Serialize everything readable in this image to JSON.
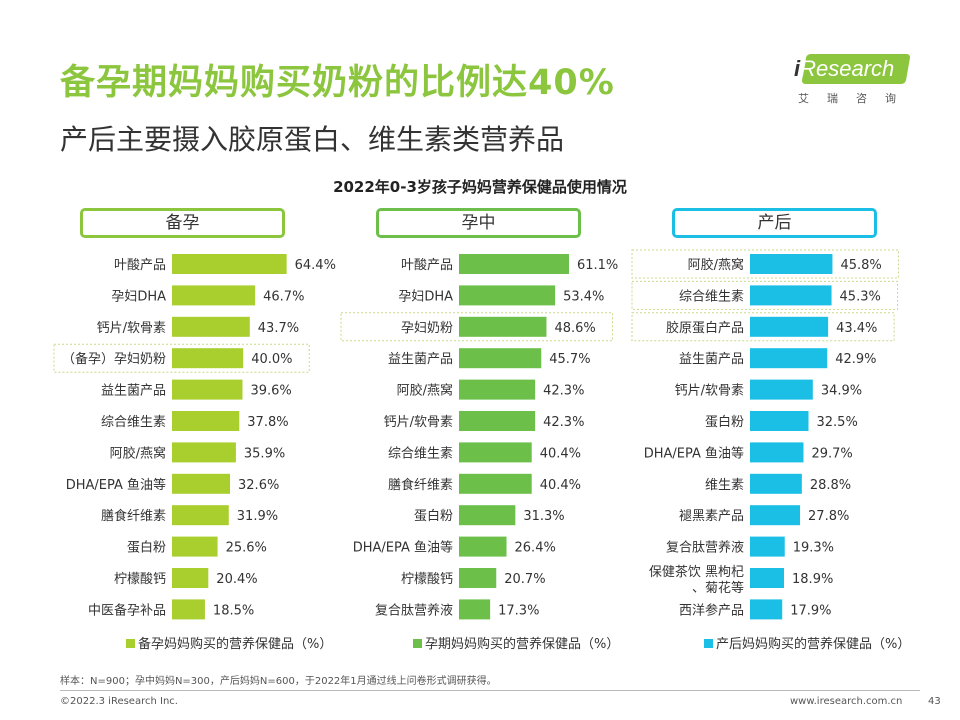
{
  "header": {
    "title": "备孕期妈妈购买奶粉的比例达40%",
    "subtitle": "产后主要摄入胶原蛋白、维生素类营养品"
  },
  "logo": {
    "i": "i",
    "rest": "Research",
    "sub": "艾瑞咨询"
  },
  "colors": {
    "accent": "#8cc63f",
    "bar_prep": "#a9cf2f",
    "bar_preg": "#6cc04a",
    "bar_post": "#1bbfe6"
  },
  "chart_data": [
    {
      "type": "bar",
      "orientation": "horizontal",
      "title": "2022年0-3岁孩子妈妈营养保健品使用情况",
      "header": "备孕",
      "color": "#a9cf2f",
      "legend": "备孕妈妈购买的营养保健品（%）",
      "highlight": [
        "（备孕）孕妇奶粉"
      ],
      "categories": [
        "叶酸产品",
        "孕妇DHA",
        "钙片/软骨素",
        "（备孕）孕妇奶粉",
        "益生菌产品",
        "综合维生素",
        "阿胶/燕窝",
        "DHA/EPA 鱼油等",
        "膳食纤维素",
        "蛋白粉",
        "柠檬酸钙",
        "中医备孕补品"
      ],
      "values": [
        64.4,
        46.7,
        43.7,
        40.0,
        39.6,
        37.8,
        35.9,
        32.6,
        31.9,
        25.6,
        20.4,
        18.5
      ],
      "labels": [
        "64.4%",
        "46.7%",
        "43.7%",
        "40.0%",
        "39.6%",
        "37.8%",
        "35.9%",
        "32.6%",
        "31.9%",
        "25.6%",
        "20.4%",
        "18.5%"
      ]
    },
    {
      "type": "bar",
      "orientation": "horizontal",
      "header": "孕中",
      "color": "#6cc04a",
      "legend": "孕期妈妈购买的营养保健品（%）",
      "highlight": [
        "孕妇奶粉"
      ],
      "categories": [
        "叶酸产品",
        "孕妇DHA",
        "孕妇奶粉",
        "益生菌产品",
        "阿胶/燕窝",
        "钙片/软骨素",
        "综合维生素",
        "膳食纤维素",
        "蛋白粉",
        "DHA/EPA 鱼油等",
        "柠檬酸钙",
        "复合肽营养液"
      ],
      "values": [
        61.1,
        53.4,
        48.6,
        45.7,
        42.3,
        42.3,
        40.4,
        40.4,
        31.3,
        26.4,
        20.7,
        17.3
      ],
      "labels": [
        "61.1%",
        "53.4%",
        "48.6%",
        "45.7%",
        "42.3%",
        "42.3%",
        "40.4%",
        "40.4%",
        "31.3%",
        "26.4%",
        "20.7%",
        "17.3%"
      ]
    },
    {
      "type": "bar",
      "orientation": "horizontal",
      "header": "产后",
      "color": "#1bbfe6",
      "legend": "产后妈妈购买的营养保健品（%）",
      "highlight": [
        "阿胶/燕窝",
        "综合维生素",
        "胶原蛋白产品"
      ],
      "categories": [
        "阿胶/燕窝",
        "综合维生素",
        "胶原蛋白产品",
        "益生菌产品",
        "钙片/软骨素",
        "蛋白粉",
        "DHA/EPA 鱼油等",
        "维生素",
        "褪黑素产品",
        "复合肽营养液",
        "保健茶饮 黑枸杞、菊花等",
        "西洋参产品"
      ],
      "values": [
        45.8,
        45.3,
        43.4,
        42.9,
        34.9,
        32.5,
        29.7,
        28.8,
        27.8,
        19.3,
        18.9,
        17.9
      ],
      "labels": [
        "45.8%",
        "45.3%",
        "43.4%",
        "42.9%",
        "34.9%",
        "32.5%",
        "29.7%",
        "28.8%",
        "27.8%",
        "19.3%",
        "18.9%",
        "17.9%"
      ]
    }
  ],
  "footer": {
    "note": "样本：N=900；孕中妈妈N=300，产后妈妈N=600，于2022年1月通过线上问卷形式调研获得。",
    "copyright": "©2022.3 iResearch Inc.",
    "website": "www.iresearch.com.cn",
    "page": "43"
  }
}
